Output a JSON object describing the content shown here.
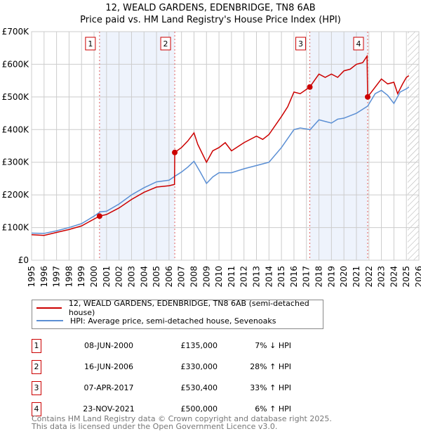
{
  "chart_data": {
    "type": "line",
    "title": "12, WEALD GARDENS, EDENBRIDGE, TN8 6AB",
    "subtitle": "Price paid vs. HM Land Registry's House Price Index (HPI)",
    "xlim": [
      1995,
      2026
    ],
    "ylim": [
      0,
      700000
    ],
    "yticks": [
      0,
      100000,
      200000,
      300000,
      400000,
      500000,
      600000,
      700000
    ],
    "ytick_labels": [
      "£0",
      "£100K",
      "£200K",
      "£300K",
      "£400K",
      "£500K",
      "£600K",
      "£700K"
    ],
    "xticks": [
      1995,
      1996,
      1997,
      1998,
      1999,
      2000,
      2001,
      2002,
      2003,
      2004,
      2005,
      2006,
      2007,
      2008,
      2009,
      2010,
      2011,
      2012,
      2013,
      2014,
      2015,
      2016,
      2017,
      2018,
      2019,
      2020,
      2021,
      2022,
      2023,
      2024,
      2025,
      2026
    ],
    "grid": true,
    "forecast_start": 2025.1,
    "series": [
      {
        "name": "12, WEALD GARDENS, EDENBRIDGE, TN8 6AB (semi-detached house)",
        "color": "#cc0000",
        "x": [
          1995,
          1996,
          1997,
          1998,
          1999,
          2000,
          2000.44,
          2001,
          2002,
          2003,
          2004,
          2005,
          2006,
          2006.44,
          2006.46,
          2007,
          2007.5,
          2008,
          2008.3,
          2009,
          2009.5,
          2010,
          2010.5,
          2011,
          2012,
          2013,
          2013.5,
          2014,
          2015,
          2015.5,
          2016,
          2016.5,
          2017.27,
          2018,
          2018.5,
          2019,
          2019.5,
          2020,
          2020.5,
          2021,
          2021.5,
          2021.85,
          2021.9,
          2022.3,
          2023,
          2023.5,
          2024,
          2024.3,
          2024.7,
          2025,
          2025.2
        ],
        "y": [
          78000,
          76000,
          85000,
          94000,
          105000,
          126000,
          135000,
          140000,
          160000,
          186000,
          208000,
          224000,
          228000,
          232000,
          330000,
          345000,
          365000,
          390000,
          355000,
          300000,
          335000,
          345000,
          360000,
          335000,
          360000,
          380000,
          370000,
          385000,
          440000,
          470000,
          515000,
          510000,
          530400,
          570000,
          560000,
          570000,
          560000,
          580000,
          585000,
          600000,
          605000,
          625000,
          500000,
          520000,
          555000,
          540000,
          545000,
          510000,
          540000,
          560000,
          565000
        ]
      },
      {
        "name": "HPI: Average price, semi-detached house, Sevenoaks",
        "color": "#5b8fd4",
        "x": [
          1995,
          1996,
          1997,
          1998,
          1999,
          2000,
          2000.5,
          2001,
          2002,
          2003,
          2004,
          2005,
          2006,
          2006.5,
          2007,
          2007.5,
          2008,
          2008.5,
          2009,
          2009.5,
          2010,
          2011,
          2012,
          2013,
          2014,
          2015,
          2016,
          2016.5,
          2017.3,
          2018,
          2019,
          2019.5,
          2020,
          2021,
          2021.9,
          2022.5,
          2023,
          2023.5,
          2024,
          2024.5,
          2025,
          2025.2
        ],
        "y": [
          83000,
          82000,
          90000,
          100000,
          112000,
          135000,
          148000,
          150000,
          172000,
          200000,
          222000,
          240000,
          245000,
          258000,
          270000,
          285000,
          303000,
          270000,
          235000,
          255000,
          268000,
          268000,
          280000,
          290000,
          300000,
          345000,
          400000,
          405000,
          400000,
          430000,
          420000,
          432000,
          435000,
          450000,
          472000,
          510000,
          520000,
          505000,
          480000,
          515000,
          525000,
          530000
        ]
      }
    ],
    "sales": [
      {
        "n": "1",
        "x": 2000.44,
        "price": 135000,
        "date": "08-JUN-2000",
        "price_label": "£135,000",
        "hpi": "7% ↓ HPI"
      },
      {
        "n": "2",
        "x": 2006.46,
        "price": 330000,
        "date": "16-JUN-2006",
        "price_label": "£330,000",
        "hpi": "28% ↑ HPI"
      },
      {
        "n": "3",
        "x": 2017.27,
        "price": 530400,
        "date": "07-APR-2017",
        "price_label": "£530,400",
        "hpi": "33% ↑ HPI"
      },
      {
        "n": "4",
        "x": 2021.9,
        "price": 500000,
        "date": "23-NOV-2021",
        "price_label": "£500,000",
        "hpi": "6% ↑ HPI"
      }
    ],
    "shaded": [
      [
        2000.44,
        2006.46
      ],
      [
        2017.27,
        2021.9
      ]
    ]
  },
  "footer": {
    "line1": "Contains HM Land Registry data © Crown copyright and database right 2025.",
    "line2": "This data is licensed under the Open Government Licence v3.0."
  }
}
